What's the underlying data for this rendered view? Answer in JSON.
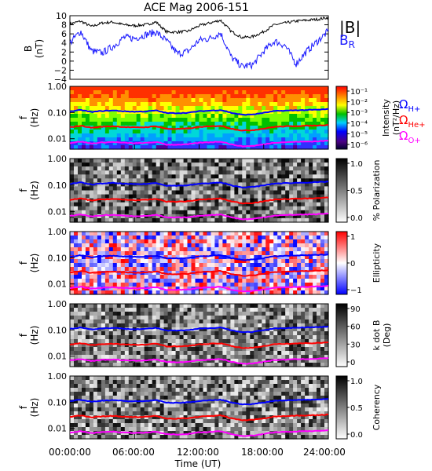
{
  "title": "ACE Mag 2006-151",
  "colors": {
    "B_total": "#000000",
    "B_R": "#1a1aff",
    "H_plus": "#0000ff",
    "He_plus": "#ff0000",
    "O_plus": "#ff00ff"
  },
  "chart_data": [
    {
      "type": "line",
      "ylabel": "B\n(nT)",
      "ylim": [
        -4,
        10
      ],
      "yticks": [
        "10",
        "8",
        "6",
        "4",
        "2",
        "0",
        "−2",
        "−4"
      ],
      "legend": [
        {
          "label": "|B|",
          "color": "#000000"
        },
        {
          "label": "B_R",
          "label_main": "B",
          "label_sub": "R",
          "color": "#1a1aff"
        }
      ],
      "series": [
        {
          "name": "|B|",
          "x_hours": [
            0,
            1,
            2,
            3,
            4,
            5,
            6,
            7,
            8,
            9,
            10,
            11,
            12,
            13,
            14,
            15,
            16,
            17,
            18,
            19,
            20,
            21,
            22,
            23,
            24
          ],
          "values": [
            8.2,
            8.8,
            7.6,
            8.4,
            8.6,
            8.0,
            7.8,
            8.0,
            8.6,
            6.4,
            6.4,
            6.6,
            7.8,
            8.4,
            9.0,
            6.5,
            5.2,
            5.4,
            6.5,
            8.0,
            8.4,
            8.8,
            9.0,
            9.2,
            9.6
          ]
        },
        {
          "name": "B_R",
          "x_hours": [
            0,
            1,
            2,
            3,
            4,
            5,
            6,
            7,
            8,
            9,
            10,
            11,
            12,
            13,
            14,
            15,
            16,
            17,
            18,
            19,
            20,
            21,
            22,
            23,
            24
          ],
          "values": [
            4.0,
            6.6,
            2.2,
            1.8,
            3.2,
            5.2,
            5.0,
            5.8,
            6.4,
            4.4,
            1.6,
            2.2,
            4.6,
            5.0,
            6.2,
            0.8,
            -1.2,
            -0.8,
            2.2,
            4.4,
            3.4,
            -0.6,
            2.2,
            4.4,
            6.6
          ]
        }
      ]
    },
    {
      "type": "heatmap",
      "ylabel": "f\n(Hz)",
      "yscale": "log",
      "ylim": [
        0.004,
        1.0
      ],
      "yticks": [
        "1.00",
        "0.10",
        "0.01"
      ],
      "colorbar": {
        "label": "Intensity",
        "unit": "(nT²/Hz)",
        "ticks": [
          "10⁻¹",
          "10⁻²",
          "10⁻³",
          "10⁻⁴",
          "10⁻⁵",
          "10⁻⁶"
        ],
        "scale": "rainbow"
      },
      "lines": [
        {
          "symbol": "Ω",
          "subscript": "H+",
          "color": "#0000ff"
        },
        {
          "symbol": "Ω",
          "subscript": "He+",
          "color": "#ff0000"
        },
        {
          "symbol": "Ω",
          "subscript": "O+",
          "color": "#ff00ff"
        }
      ]
    },
    {
      "type": "heatmap",
      "ylabel": "f\n(Hz)",
      "yscale": "log",
      "ylim": [
        0.004,
        1.0
      ],
      "yticks": [
        "1.00",
        "0.10",
        "0.01"
      ],
      "colorbar": {
        "label": "% Polarization",
        "ticks": [
          "1.0",
          "0.5",
          "0.0"
        ],
        "scale": "gray"
      }
    },
    {
      "type": "heatmap",
      "ylabel": "f\n(Hz)",
      "yscale": "log",
      "ylim": [
        0.004,
        1.0
      ],
      "yticks": [
        "1.00",
        "0.10",
        "0.01"
      ],
      "colorbar": {
        "label": "Ellipticity",
        "ticks": [
          "1",
          "0",
          "−1"
        ],
        "scale": "redblue"
      }
    },
    {
      "type": "heatmap",
      "ylabel": "f\n(Hz)",
      "yscale": "log",
      "ylim": [
        0.004,
        1.0
      ],
      "yticks": [
        "1.00",
        "0.10",
        "0.01"
      ],
      "colorbar": {
        "label": "k dot B",
        "unit": "(Deg)",
        "ticks": [
          "90",
          "60",
          "30",
          "0"
        ],
        "scale": "gray"
      }
    },
    {
      "type": "heatmap",
      "ylabel": "f\n(Hz)",
      "yscale": "log",
      "ylim": [
        0.004,
        1.0
      ],
      "yticks": [
        "1.00",
        "0.10",
        "0.01"
      ],
      "colorbar": {
        "label": "Coherency",
        "ticks": [
          "1.0",
          "0.5",
          "0.0"
        ],
        "scale": "gray"
      }
    }
  ],
  "gyro_lines": {
    "x_hours": [
      0,
      1,
      2,
      3,
      4,
      5,
      6,
      7,
      8,
      9,
      10,
      11,
      12,
      13,
      14,
      15,
      16,
      17,
      18,
      19,
      20,
      21,
      22,
      23,
      24
    ],
    "H_plus_hz": [
      0.11,
      0.125,
      0.105,
      0.115,
      0.12,
      0.112,
      0.108,
      0.11,
      0.12,
      0.095,
      0.095,
      0.098,
      0.112,
      0.118,
      0.125,
      0.097,
      0.082,
      0.085,
      0.097,
      0.114,
      0.118,
      0.122,
      0.125,
      0.128,
      0.135
    ]
  },
  "xaxis": {
    "ticks": [
      "00:00:00",
      "06:00:00",
      "12:00:00",
      "18:00:00",
      "24:00:00"
    ],
    "label": "Time (UT)",
    "range_hours": [
      0,
      24
    ]
  }
}
